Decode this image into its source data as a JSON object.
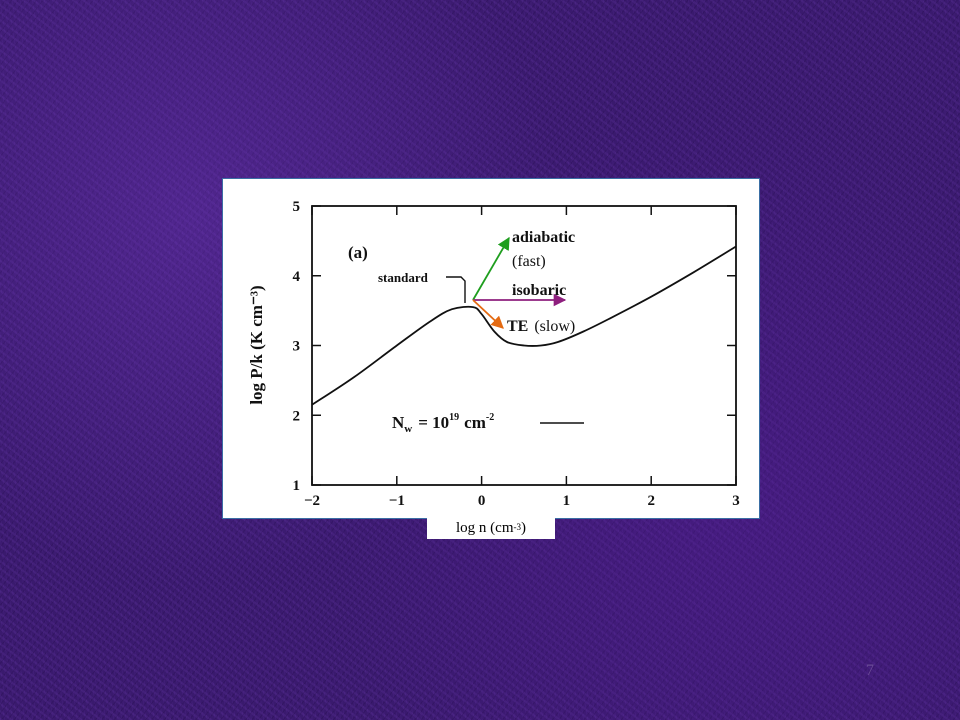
{
  "chart_data": {
    "type": "line",
    "panel_label": "(a)",
    "xlabel": "log n (cm-3)",
    "xlabel_text": "log n (cm",
    "xlabel_exp": "-3",
    "xlabel_close": ")",
    "ylabel": "log P/k (K cm⁻³)",
    "xlim": [
      -2,
      3
    ],
    "ylim": [
      1,
      5
    ],
    "xticks": [
      -2,
      -1,
      0,
      1,
      2,
      3
    ],
    "yticks": [
      1,
      2,
      3,
      4,
      5
    ],
    "xtick_labels": [
      "−2",
      "−1",
      "0",
      "1",
      "2",
      "3"
    ],
    "ytick_labels": [
      "1",
      "2",
      "3",
      "4",
      "5"
    ],
    "grid": false,
    "series": [
      {
        "name": "standard",
        "x": [
          -2.0,
          -1.5,
          -1.0,
          -0.6,
          -0.35,
          -0.1,
          0.0,
          0.15,
          0.3,
          0.5,
          0.7,
          0.9,
          1.2,
          1.5,
          2.0,
          2.5,
          3.0
        ],
        "y": [
          2.15,
          2.55,
          3.0,
          3.35,
          3.52,
          3.55,
          3.45,
          3.2,
          3.05,
          3.0,
          3.0,
          3.05,
          3.2,
          3.38,
          3.7,
          4.05,
          4.42
        ]
      }
    ],
    "legend": {
      "text": "N",
      "subscript": "w",
      "equation": "= 10",
      "exponent": "19",
      "unit": "cm",
      "unit_exponent": "-2"
    },
    "annotations": [
      {
        "id": "standard",
        "text": "standard"
      },
      {
        "id": "adiabatic",
        "text": "adiabatic",
        "color": "#1e9e1e"
      },
      {
        "id": "fast",
        "text": "(fast)"
      },
      {
        "id": "isobaric",
        "text": "isobaric",
        "color": "#8e1f7e"
      },
      {
        "id": "te",
        "text": "TE",
        "color": "#e46a12"
      },
      {
        "id": "slow",
        "text": "(slow)"
      }
    ],
    "arrow_origin": {
      "x": -0.05,
      "y": 3.55
    }
  },
  "page": {
    "number": "7"
  },
  "colors": {
    "background": "#3a1a6e",
    "adiabatic_arrow": "#1e9e1e",
    "isobaric_arrow": "#8e1f7e",
    "te_arrow": "#e46a12"
  }
}
